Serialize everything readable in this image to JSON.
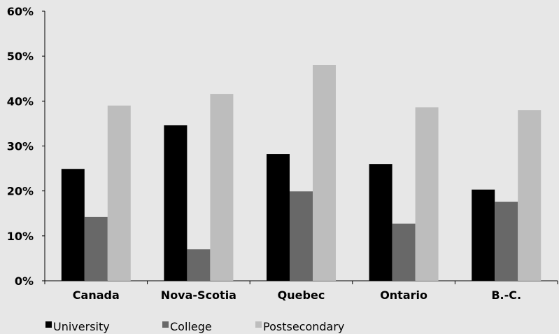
{
  "chart_data": {
    "type": "bar",
    "title": "",
    "xlabel": "",
    "ylabel": "",
    "categories": [
      "Canada",
      "Nova-Scotia",
      "Quebec",
      "Ontario",
      "B.-C."
    ],
    "series": [
      {
        "name": "University",
        "color": "#000000",
        "values": [
          24.9,
          34.6,
          28.2,
          26.0,
          20.3
        ]
      },
      {
        "name": "College",
        "color": "#686868",
        "values": [
          14.2,
          7.0,
          19.9,
          12.7,
          17.6
        ]
      },
      {
        "name": "Postsecondary",
        "color": "#bdbdbd",
        "values": [
          39.0,
          41.6,
          48.0,
          38.6,
          38.0
        ]
      }
    ],
    "ylim": [
      0,
      60
    ],
    "yticks": [
      "0%",
      "10%",
      "20%",
      "30%",
      "40%",
      "50%",
      "60%"
    ],
    "legend_position": "bottom-left",
    "grid": false
  }
}
